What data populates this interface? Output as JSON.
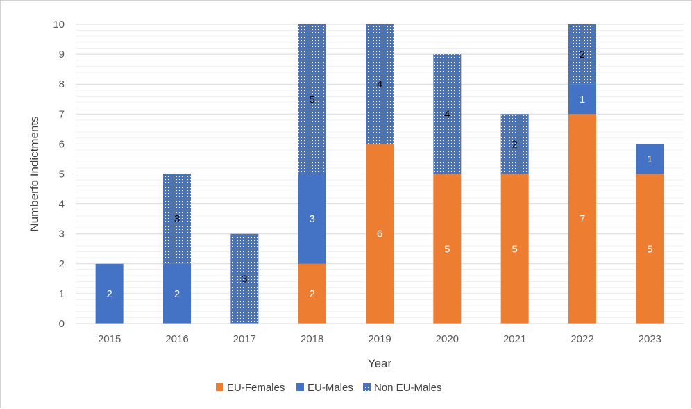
{
  "chart_data": {
    "type": "bar",
    "stacked": true,
    "categories": [
      "2015",
      "2016",
      "2017",
      "2018",
      "2019",
      "2020",
      "2021",
      "2022",
      "2023"
    ],
    "series": [
      {
        "name": "EU-Females",
        "color": "#ED7D31",
        "pattern": "solid",
        "values": [
          0,
          0,
          0,
          2,
          6,
          5,
          5,
          7,
          5
        ]
      },
      {
        "name": "EU-Males",
        "color": "#4472C4",
        "pattern": "solid",
        "values": [
          2,
          2,
          0,
          3,
          0,
          0,
          0,
          1,
          1
        ]
      },
      {
        "name": "Non EU-Males",
        "color": "#4472C4",
        "pattern": "dotted",
        "values": [
          0,
          3,
          3,
          5,
          4,
          4,
          2,
          2,
          0
        ]
      }
    ],
    "xlabel": "Year",
    "ylabel": "Numberfo Indictments",
    "ylim": [
      0,
      10
    ],
    "yticks": [
      "0",
      "1",
      "2",
      "3",
      "4",
      "5",
      "6",
      "7",
      "8",
      "9",
      "10"
    ],
    "grid": "major and minor horizontal",
    "legend_position": "bottom",
    "data_labels": true
  }
}
